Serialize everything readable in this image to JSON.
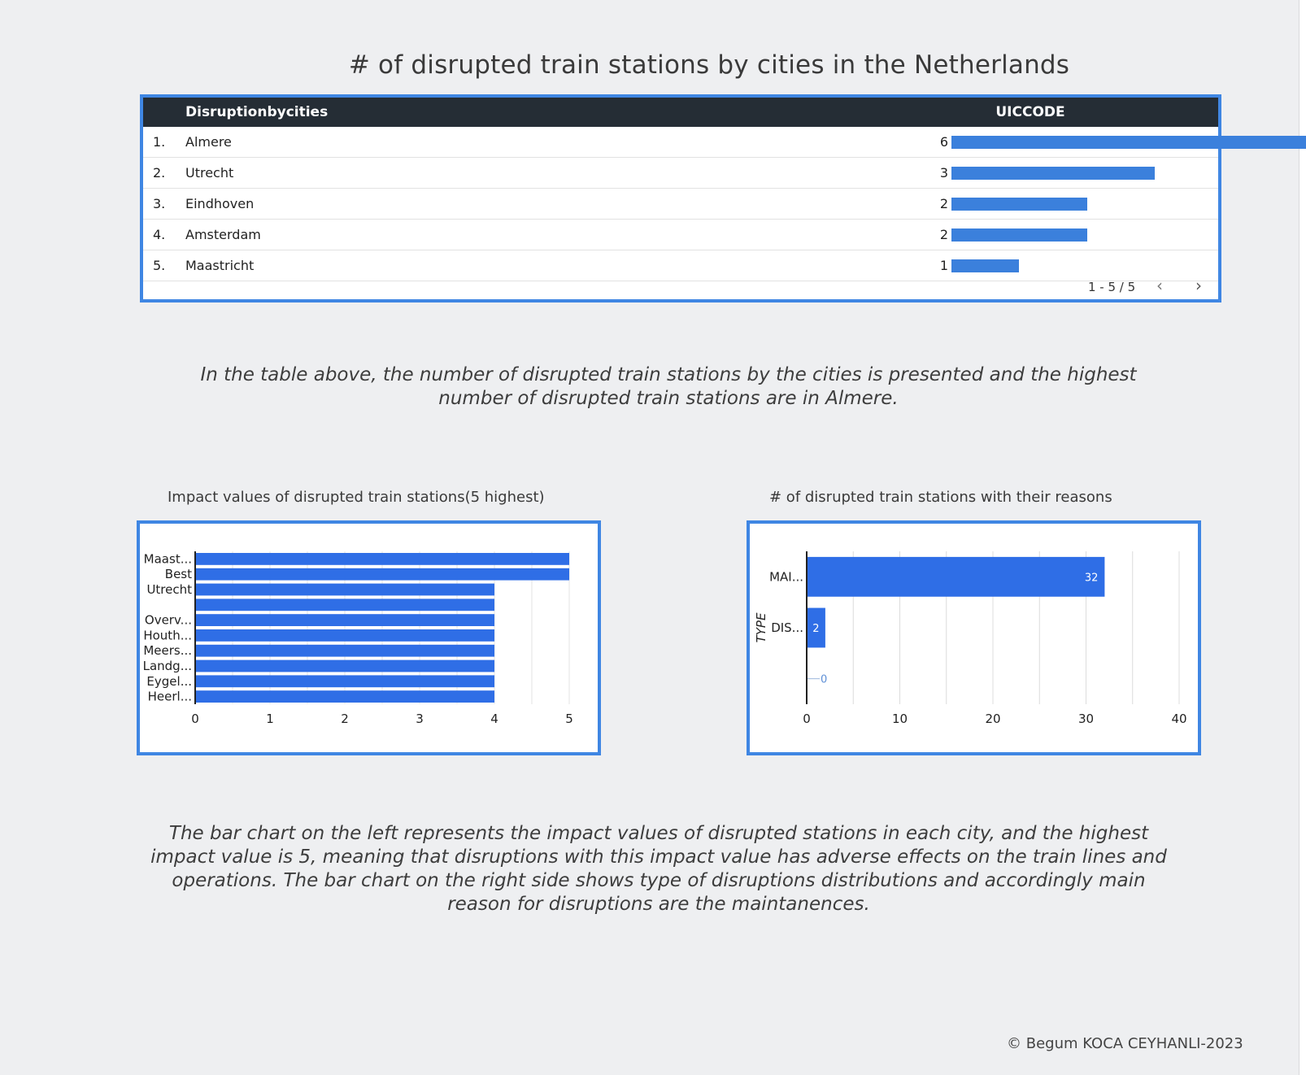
{
  "page": {
    "title": "# of disrupted train stations by cities in the Netherlands",
    "paragraph1": "In the table above, the number of disrupted train stations by the cities is presented and the highest number of disrupted train stations are in Almere.",
    "paragraph2": "The bar chart on the left represents the impact values of disrupted stations in each city, and the highest impact value is 5, meaning that disruptions with this impact value has adverse effects on the train lines and operations. The bar chart on the right side shows type of disruptions distributions and accordingly main reason for disruptions are the maintanences.",
    "copyright": "© Begum KOCA CEYHANLI-2023"
  },
  "colors": {
    "accent": "#3f86e3",
    "bar": "#3b80dc",
    "bar_chart": "#2f6ee6",
    "header": "#252d35"
  },
  "table": {
    "dimension_header": "Disruptionbycities",
    "metric_header": "UICCODE",
    "pager": "1 - 5 / 5",
    "prev_icon": "chevron-left-icon",
    "next_icon": "chevron-right-icon",
    "rows": [
      {
        "index": "1.",
        "city": "Almere",
        "value": "6"
      },
      {
        "index": "2.",
        "city": "Utrecht",
        "value": "3"
      },
      {
        "index": "3.",
        "city": "Eindhoven",
        "value": "2"
      },
      {
        "index": "4.",
        "city": "Amsterdam",
        "value": "2"
      },
      {
        "index": "5.",
        "city": "Maastricht",
        "value": "1"
      }
    ],
    "max_value": 6
  },
  "chart_data": [
    {
      "type": "bar",
      "orientation": "horizontal",
      "title": "Impact values of disrupted train stations(5 highest)",
      "categories": [
        "Maast...",
        "Best",
        "Utrecht",
        "",
        "Overv...",
        "Houth...",
        "Meers...",
        "Landg...",
        "Eygel...",
        "Heerl..."
      ],
      "values": [
        5,
        5,
        4,
        4,
        4,
        4,
        4,
        4,
        4,
        4
      ],
      "xlim": [
        0,
        5
      ],
      "xticks": [
        "0",
        "1",
        "2",
        "3",
        "4",
        "5"
      ],
      "xlabel": "",
      "ylabel": "",
      "grid": true
    },
    {
      "type": "bar",
      "orientation": "horizontal",
      "title": "# of disrupted train stations with their reasons",
      "categories": [
        "MAI...",
        "DIS...",
        ""
      ],
      "values": [
        32,
        2,
        0
      ],
      "data_labels": [
        "32",
        "2",
        "0"
      ],
      "xlim": [
        0,
        40
      ],
      "xticks": [
        "0",
        "10",
        "20",
        "30",
        "40"
      ],
      "xlabel": "",
      "ylabel": "TYPE",
      "grid": true
    }
  ]
}
